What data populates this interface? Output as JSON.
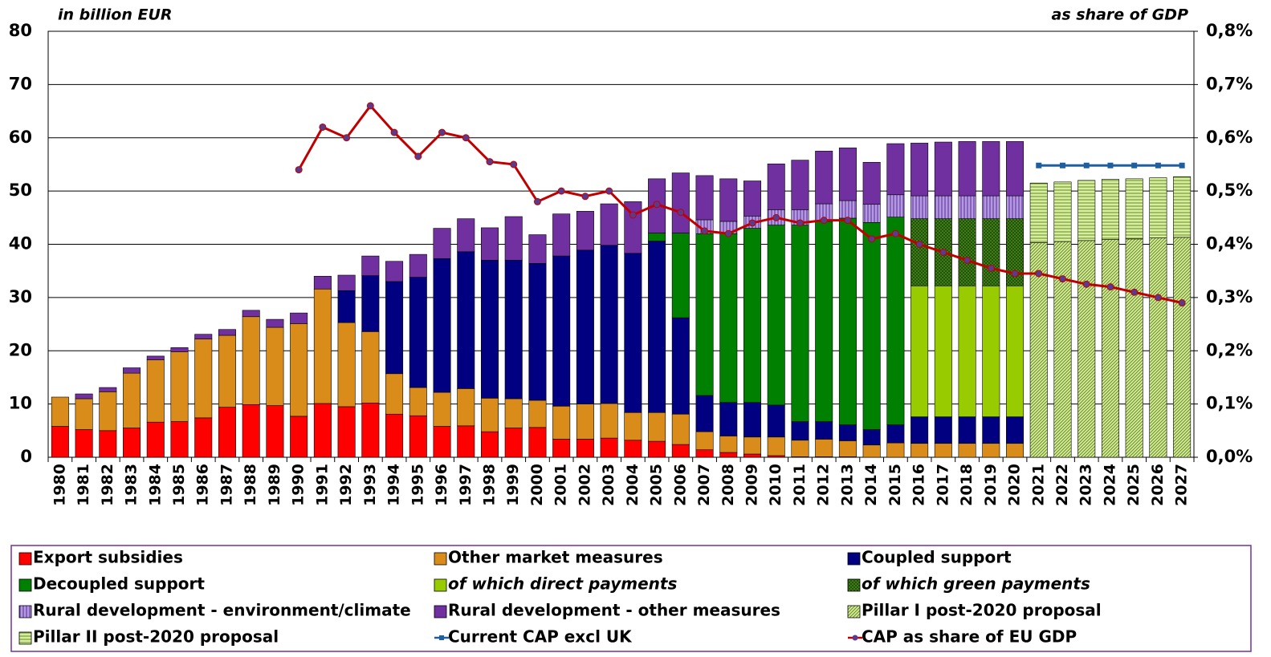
{
  "chart_data": {
    "type": "bar",
    "stacked": true,
    "y_label": "in billion EUR",
    "y2_label": "as share of  GDP",
    "categories": [
      "1980",
      "1981",
      "1982",
      "1983",
      "1984",
      "1985",
      "1986",
      "1987",
      "1988",
      "1989",
      "1990",
      "1991",
      "1992",
      "1993",
      "1994",
      "1995",
      "1996",
      "1997",
      "1998",
      "1999",
      "2000",
      "2001",
      "2002",
      "2003",
      "2004",
      "2005",
      "2006",
      "2007",
      "2008",
      "2009",
      "2010",
      "2011",
      "2012",
      "2013",
      "2014",
      "2015",
      "2016",
      "2017",
      "2018",
      "2019",
      "2020",
      "2021",
      "2022",
      "2023",
      "2024",
      "2025",
      "2026",
      "2027"
    ],
    "ylim": [
      0,
      80
    ],
    "yticks": [
      0,
      10,
      20,
      30,
      40,
      50,
      60,
      70,
      80
    ],
    "y2lim": [
      0,
      0.8
    ],
    "y2ticks": [
      {
        "value": 0,
        "label": "0,0%"
      },
      {
        "value": 0.1,
        "label": "0,1%"
      },
      {
        "value": 0.2,
        "label": "0,2%"
      },
      {
        "value": 0.3,
        "label": "0,3%"
      },
      {
        "value": 0.4,
        "label": "0,4%"
      },
      {
        "value": 0.5,
        "label": "0,5%"
      },
      {
        "value": 0.6,
        "label": "0,6%"
      },
      {
        "value": 0.7,
        "label": "0,7%"
      },
      {
        "value": 0.8,
        "label": "0,8%"
      }
    ],
    "grid": true,
    "legend": "bottom",
    "series": [
      {
        "name": "Export subsidies",
        "color": "#ff0000",
        "values": [
          5.8,
          5.2,
          5.0,
          5.5,
          6.6,
          6.7,
          7.4,
          9.4,
          9.9,
          9.7,
          7.7,
          10.1,
          9.5,
          10.2,
          8.1,
          7.8,
          5.8,
          5.9,
          4.8,
          5.5,
          5.6,
          3.4,
          3.4,
          3.6,
          3.2,
          3.0,
          2.4,
          1.4,
          0.9,
          0.6,
          0.3,
          0.1,
          0.1,
          0.1,
          null,
          null,
          null,
          null,
          null,
          null,
          null,
          null,
          null,
          null,
          null,
          null,
          null,
          null
        ]
      },
      {
        "name": "Other market measures",
        "color": "#d98c1a",
        "values": [
          5.5,
          5.8,
          7.3,
          10.3,
          11.7,
          13.1,
          14.8,
          13.5,
          16.5,
          14.7,
          17.4,
          21.5,
          15.8,
          13.4,
          7.6,
          5.3,
          6.4,
          7.0,
          6.3,
          5.5,
          5.1,
          6.2,
          6.6,
          6.5,
          5.2,
          5.4,
          5.7,
          3.4,
          3.1,
          3.2,
          3.5,
          3.1,
          3.3,
          3.0,
          2.3,
          2.7,
          2.6,
          2.6,
          2.6,
          2.6,
          2.6,
          null,
          null,
          null,
          null,
          null,
          null,
          null
        ]
      },
      {
        "name": "Coupled support",
        "color": "#000080",
        "values": [
          null,
          null,
          null,
          null,
          null,
          null,
          null,
          null,
          null,
          null,
          null,
          null,
          6.0,
          10.5,
          17.3,
          20.7,
          25.1,
          25.7,
          25.9,
          26.0,
          25.7,
          28.2,
          28.9,
          29.7,
          29.9,
          32.2,
          18.1,
          6.8,
          6.3,
          6.5,
          6.0,
          3.5,
          3.3,
          3.0,
          2.9,
          3.4,
          5.0,
          5.0,
          5.0,
          5.0,
          5.0,
          null,
          null,
          null,
          null,
          null,
          null,
          null
        ]
      },
      {
        "name": "Decoupled support",
        "color": "#008000",
        "values": [
          null,
          null,
          null,
          null,
          null,
          null,
          null,
          null,
          null,
          null,
          null,
          null,
          null,
          null,
          null,
          null,
          null,
          null,
          null,
          null,
          null,
          null,
          null,
          null,
          null,
          1.5,
          15.9,
          30.4,
          31.7,
          32.7,
          33.8,
          36.9,
          37.6,
          38.8,
          38.9,
          39.0,
          null,
          null,
          null,
          null,
          null,
          null,
          null,
          null,
          null,
          null,
          null,
          null
        ]
      },
      {
        "name": "of which direct payments",
        "color": "#99cc00",
        "italic": true,
        "values": [
          null,
          null,
          null,
          null,
          null,
          null,
          null,
          null,
          null,
          null,
          null,
          null,
          null,
          null,
          null,
          null,
          null,
          null,
          null,
          null,
          null,
          null,
          null,
          null,
          null,
          null,
          null,
          null,
          null,
          null,
          null,
          null,
          null,
          null,
          null,
          null,
          24.6,
          24.6,
          24.6,
          24.6,
          24.6,
          null,
          null,
          null,
          null,
          null,
          null,
          null
        ]
      },
      {
        "name": "of which green payments",
        "color": "#4d8c1a",
        "italic": true,
        "pattern": "cross",
        "values": [
          null,
          null,
          null,
          null,
          null,
          null,
          null,
          null,
          null,
          null,
          null,
          null,
          null,
          null,
          null,
          null,
          null,
          null,
          null,
          null,
          null,
          null,
          null,
          null,
          null,
          null,
          null,
          null,
          null,
          null,
          null,
          null,
          null,
          null,
          null,
          null,
          12.6,
          12.6,
          12.6,
          12.6,
          12.6,
          null,
          null,
          null,
          null,
          null,
          null,
          null
        ]
      },
      {
        "name": "Rural development - environment/climate",
        "color": "#b399e0",
        "pattern": "vertical",
        "values": [
          null,
          null,
          null,
          null,
          null,
          null,
          null,
          null,
          null,
          null,
          null,
          null,
          null,
          null,
          null,
          null,
          null,
          null,
          null,
          null,
          null,
          null,
          null,
          null,
          null,
          null,
          null,
          2.6,
          2.3,
          2.3,
          2.9,
          2.9,
          3.3,
          3.3,
          3.4,
          4.2,
          4.3,
          4.3,
          4.3,
          4.3,
          4.3,
          null,
          null,
          null,
          null,
          null,
          null,
          null
        ]
      },
      {
        "name": "Rural development - other measures",
        "color": "#7030a0",
        "values": [
          null,
          0.9,
          0.8,
          1.0,
          0.7,
          0.8,
          0.9,
          1.1,
          1.2,
          1.5,
          2.0,
          2.4,
          2.9,
          3.7,
          3.8,
          4.3,
          5.7,
          6.2,
          6.1,
          8.2,
          5.4,
          7.9,
          7.3,
          7.8,
          9.7,
          10.2,
          11.3,
          8.3,
          8.0,
          6.6,
          8.6,
          9.3,
          9.9,
          9.9,
          7.9,
          9.6,
          9.9,
          10.1,
          10.2,
          10.2,
          10.2,
          null,
          null,
          null,
          null,
          null,
          null,
          null
        ]
      },
      {
        "name": "Pillar I post-2020 proposal",
        "color": "#d6eea0",
        "pattern": "diagonal",
        "values": [
          null,
          null,
          null,
          null,
          null,
          null,
          null,
          null,
          null,
          null,
          null,
          null,
          null,
          null,
          null,
          null,
          null,
          null,
          null,
          null,
          null,
          null,
          null,
          null,
          null,
          null,
          null,
          null,
          null,
          null,
          null,
          null,
          null,
          null,
          null,
          null,
          null,
          null,
          null,
          null,
          null,
          40.3,
          40.5,
          40.7,
          40.9,
          41.0,
          41.2,
          41.3
        ]
      },
      {
        "name": "Pillar II post-2020 proposal",
        "color": "#d6eea0",
        "pattern": "horizontal",
        "values": [
          null,
          null,
          null,
          null,
          null,
          null,
          null,
          null,
          null,
          null,
          null,
          null,
          null,
          null,
          null,
          null,
          null,
          null,
          null,
          null,
          null,
          null,
          null,
          null,
          null,
          null,
          null,
          null,
          null,
          null,
          null,
          null,
          null,
          null,
          null,
          null,
          null,
          null,
          null,
          null,
          null,
          11.2,
          11.2,
          11.3,
          11.3,
          11.3,
          11.3,
          11.4
        ]
      },
      {
        "name": "Current CAP excl UK",
        "color": "#1f5fa0",
        "type": "line",
        "marker": "square",
        "values": [
          null,
          null,
          null,
          null,
          null,
          null,
          null,
          null,
          null,
          null,
          null,
          null,
          null,
          null,
          null,
          null,
          null,
          null,
          null,
          null,
          null,
          null,
          null,
          null,
          null,
          null,
          null,
          null,
          null,
          null,
          null,
          null,
          null,
          null,
          null,
          null,
          null,
          null,
          null,
          null,
          null,
          54.8,
          54.8,
          54.8,
          54.8,
          54.8,
          54.8,
          54.8
        ]
      },
      {
        "name": "CAP as share of EU GDP",
        "color": "#c00000",
        "type": "line",
        "marker": "circle",
        "marker_color": "#5a3a8a",
        "axis": "y2",
        "values": [
          null,
          null,
          null,
          null,
          null,
          null,
          null,
          null,
          null,
          null,
          0.54,
          0.62,
          0.6,
          0.66,
          0.61,
          0.565,
          0.61,
          0.6,
          0.555,
          0.55,
          0.48,
          0.5,
          0.49,
          0.5,
          0.455,
          0.475,
          0.46,
          0.425,
          0.42,
          0.44,
          0.45,
          0.44,
          0.445,
          0.445,
          0.41,
          0.42,
          0.4,
          0.385,
          0.37,
          0.355,
          0.345,
          0.345,
          0.335,
          0.325,
          0.32,
          0.31,
          0.3,
          0.29
        ]
      }
    ]
  }
}
